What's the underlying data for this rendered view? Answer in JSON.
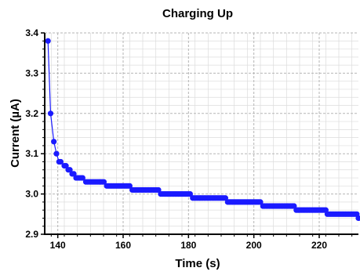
{
  "chart_data": {
    "type": "scatter",
    "title": "Charging Up",
    "xlabel": "Time (s)",
    "ylabel": "Current (µA)",
    "xlim": [
      136,
      232
    ],
    "ylim": [
      2.9,
      3.4
    ],
    "xticks": [
      140,
      160,
      180,
      200,
      220
    ],
    "yticks": [
      2.9,
      3.0,
      3.1,
      3.2,
      3.3,
      3.4
    ],
    "xtick_labels": [
      "140",
      "160",
      "180",
      "200",
      "220"
    ],
    "ytick_labels": [
      "2.9",
      "3.0",
      "3.1",
      "3.2",
      "3.3",
      "3.4"
    ],
    "grid": true,
    "series": [
      {
        "color": "#1a1aff",
        "marker": "circle",
        "connected": true,
        "steps": [
          {
            "x_start": 137.0,
            "x_end": 137.0,
            "y": 3.38
          },
          {
            "x_start": 137.8,
            "x_end": 137.8,
            "y": 3.2
          },
          {
            "x_start": 138.8,
            "x_end": 138.8,
            "y": 3.13
          },
          {
            "x_start": 139.6,
            "x_end": 139.6,
            "y": 3.1
          },
          {
            "x_start": 140.4,
            "x_end": 141.2,
            "y": 3.08
          },
          {
            "x_start": 142.0,
            "x_end": 142.6,
            "y": 3.07
          },
          {
            "x_start": 143.2,
            "x_end": 143.8,
            "y": 3.06
          },
          {
            "x_start": 144.4,
            "x_end": 145.0,
            "y": 3.05
          },
          {
            "x_start": 145.6,
            "x_end": 148.0,
            "y": 3.04
          },
          {
            "x_start": 148.6,
            "x_end": 154.5,
            "y": 3.03
          },
          {
            "x_start": 155.0,
            "x_end": 162.3,
            "y": 3.02
          },
          {
            "x_start": 162.8,
            "x_end": 171.0,
            "y": 3.01
          },
          {
            "x_start": 171.5,
            "x_end": 180.8,
            "y": 3.0
          },
          {
            "x_start": 181.3,
            "x_end": 191.5,
            "y": 2.99
          },
          {
            "x_start": 192.0,
            "x_end": 202.3,
            "y": 2.98
          },
          {
            "x_start": 202.8,
            "x_end": 212.5,
            "y": 2.97
          },
          {
            "x_start": 213.0,
            "x_end": 222.0,
            "y": 2.96
          },
          {
            "x_start": 222.5,
            "x_end": 231.5,
            "y": 2.95
          },
          {
            "x_start": 232.0,
            "x_end": 232.0,
            "y": 2.94
          }
        ]
      }
    ]
  }
}
